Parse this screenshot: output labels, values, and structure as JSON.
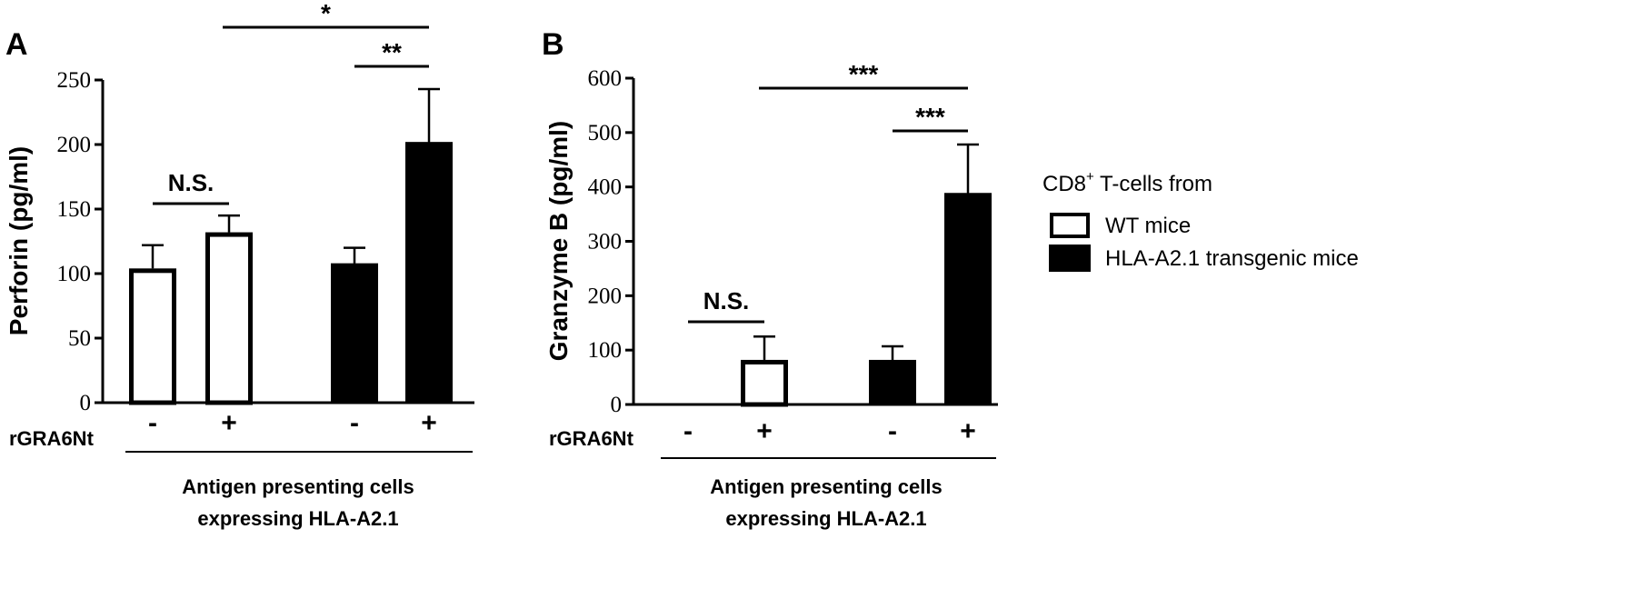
{
  "panels": [
    {
      "letter": "A",
      "ylabel": "Perforin (pg/ml)",
      "treatment_label": "rGRA6Nt",
      "group_label_line1": "Antigen presenting cells",
      "group_label_line2": "expressing HLA-A2.1",
      "comparisons": [
        {
          "from": 0,
          "to": 1,
          "label": "N.S."
        },
        {
          "from": 1,
          "to": 3,
          "label": "*"
        },
        {
          "from": 2,
          "to": 3,
          "label": "**"
        }
      ]
    },
    {
      "letter": "B",
      "ylabel": "Granzyme B (pg/ml)",
      "treatment_label": "rGRA6Nt",
      "group_label_line1": "Antigen presenting cells",
      "group_label_line2": "expressing HLA-A2.1",
      "comparisons": [
        {
          "from": 0,
          "to": 1,
          "label": "N.S."
        },
        {
          "from": 1,
          "to": 3,
          "label": "***"
        },
        {
          "from": 2,
          "to": 3,
          "label": "***"
        }
      ]
    }
  ],
  "legend": {
    "title_prefix": "CD8",
    "title_sup": "+",
    "title_suffix": " T-cells from",
    "items": [
      {
        "label": "WT mice",
        "fill": "#ffffff"
      },
      {
        "label": "HLA-A2.1 transgenic mice",
        "fill": "#000000"
      }
    ]
  },
  "chart_data": [
    {
      "type": "bar",
      "categories": [
        "-",
        "+",
        "-",
        "+"
      ],
      "xlabel": "Antigen presenting cells expressing HLA-A2.1",
      "ylabel": "Perforin (pg/ml)",
      "ylim": [
        0,
        250
      ],
      "yticks": [
        0,
        50,
        100,
        150,
        200,
        250
      ],
      "series": [
        {
          "name": "WT mice",
          "values": [
            104,
            132,
            null,
            null
          ],
          "errors": [
            18,
            13,
            null,
            null
          ],
          "color": "#ffffff"
        },
        {
          "name": "HLA-A2.1 transgenic mice",
          "values": [
            null,
            null,
            108,
            202
          ],
          "errors": [
            null,
            null,
            12,
            41
          ],
          "color": "#000000"
        }
      ]
    },
    {
      "type": "bar",
      "categories": [
        "-",
        "+",
        "-",
        "+"
      ],
      "xlabel": "Antigen presenting cells expressing HLA-A2.1",
      "ylabel": "Granzyme B (pg/ml)",
      "ylim": [
        0,
        600
      ],
      "yticks": [
        0,
        100,
        200,
        300,
        400,
        500,
        600
      ],
      "series": [
        {
          "name": "WT mice",
          "values": [
            0,
            82,
            null,
            null
          ],
          "errors": [
            0,
            43,
            null,
            null
          ],
          "color": "#ffffff"
        },
        {
          "name": "HLA-A2.1 transgenic mice",
          "values": [
            null,
            null,
            82,
            389
          ],
          "errors": [
            null,
            null,
            25,
            89
          ],
          "color": "#000000"
        }
      ]
    }
  ]
}
